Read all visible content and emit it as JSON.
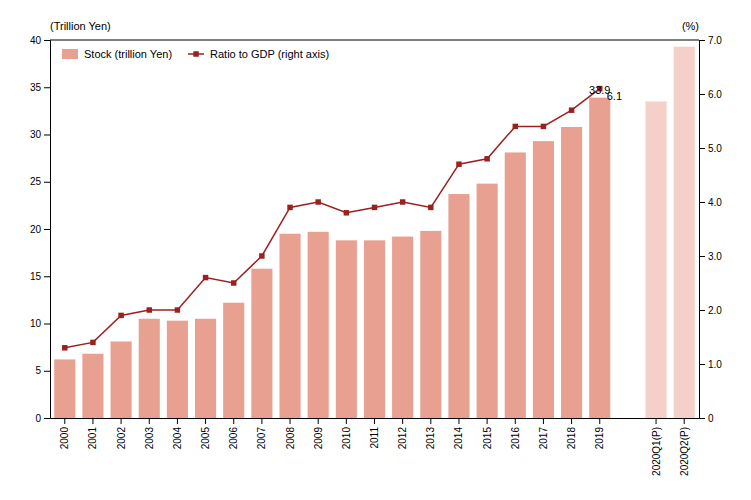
{
  "chart_data": {
    "type": "bar",
    "categories": [
      "2000",
      "2001",
      "2002",
      "2003",
      "2004",
      "2005",
      "2006",
      "2007",
      "2008",
      "2009",
      "2010",
      "2011",
      "2012",
      "2013",
      "2014",
      "2015",
      "2016",
      "2017",
      "2018",
      "2019",
      null,
      "2020Q1(P)",
      "2020Q2(P)"
    ],
    "series": [
      {
        "name": "Stock (trillion Yen)",
        "type": "bar",
        "color": "#e8a090",
        "colors": [
          "#e8a090",
          "#e8a090",
          "#e8a090",
          "#e8a090",
          "#e8a090",
          "#e8a090",
          "#e8a090",
          "#e8a090",
          "#e8a090",
          "#e8a090",
          "#e8a090",
          "#e8a090",
          "#e8a090",
          "#e8a090",
          "#e8a090",
          "#e8a090",
          "#e8a090",
          "#e8a090",
          "#e8a090",
          "#e8a090",
          null,
          "#f5d0c8",
          "#f5d0c8"
        ],
        "values": [
          6.2,
          6.8,
          8.1,
          10.5,
          10.3,
          10.5,
          12.2,
          15.8,
          19.5,
          19.7,
          18.8,
          18.8,
          19.2,
          19.8,
          23.7,
          24.8,
          28.1,
          29.3,
          30.8,
          33.9,
          null,
          33.5,
          39.3
        ]
      },
      {
        "name": "Ratio to GDP (right axis)",
        "type": "line",
        "axis": "y2",
        "color": "#9b2020",
        "marker": "square",
        "values": [
          1.3,
          1.4,
          1.9,
          2.0,
          2.0,
          2.6,
          2.5,
          3.0,
          3.9,
          4.0,
          3.8,
          3.9,
          4.0,
          3.9,
          4.7,
          4.8,
          5.4,
          5.4,
          5.7,
          6.1,
          null,
          null,
          null
        ]
      }
    ],
    "y_label": "(Trillion Yen)",
    "y2_label": "(%)",
    "ylim": [
      0,
      40
    ],
    "yticks": [
      0,
      5,
      10,
      15,
      20,
      25,
      30,
      35,
      40
    ],
    "y2lim": [
      0,
      7.0
    ],
    "y2ticks": [
      0,
      {
        "value": 1.0,
        "label": "1.0"
      },
      {
        "value": 2.0,
        "label": "2.0"
      },
      {
        "value": 3.0,
        "label": "3.0"
      },
      {
        "value": 4.0,
        "label": "4.0"
      },
      {
        "value": 5.0,
        "label": "5.0"
      },
      {
        "value": 6.0,
        "label": "6.0"
      },
      {
        "value": 7.0,
        "label": "7.0"
      }
    ],
    "annotations": [
      {
        "text": "33.9",
        "x": "2019",
        "y": 33.9
      },
      {
        "text": "6.1",
        "x": "2019",
        "y": 6.1,
        "axis": "y2"
      }
    ],
    "legend": "upper left",
    "grid": false
  }
}
